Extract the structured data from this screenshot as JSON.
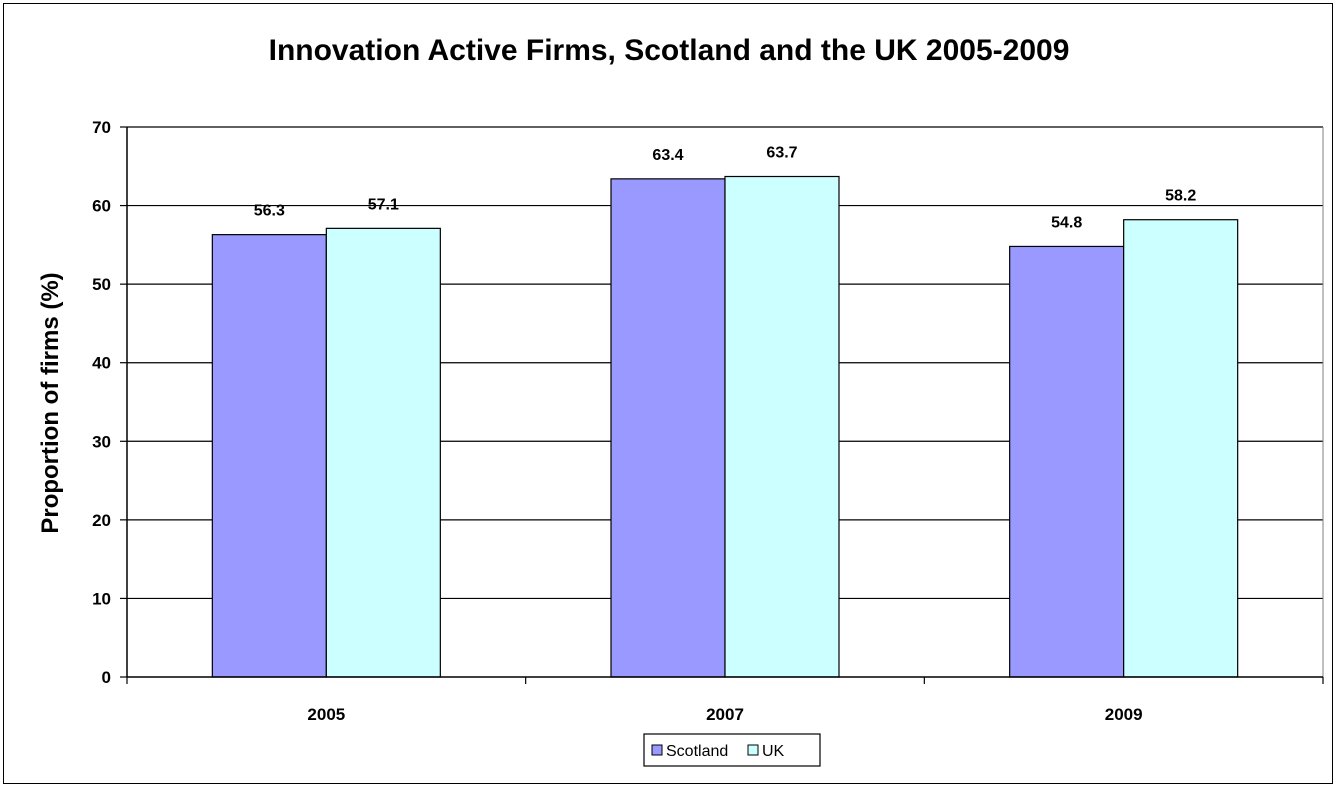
{
  "chart_data": {
    "type": "bar",
    "title": "Innovation Active Firms, Scotland and the UK 2005-2009",
    "xlabel": "",
    "ylabel": "Proportion of firms (%)",
    "categories": [
      "2005",
      "2007",
      "2009"
    ],
    "series": [
      {
        "name": "Scotland",
        "values": [
          56.3,
          63.4,
          54.8
        ],
        "color": "#9999ff"
      },
      {
        "name": "UK",
        "values": [
          57.1,
          63.7,
          58.2
        ],
        "color": "#ccffff"
      }
    ],
    "ylim": [
      0,
      70
    ],
    "yticks": [
      "0",
      "10",
      "20",
      "30",
      "40",
      "50",
      "60",
      "70"
    ],
    "data_labels": [
      [
        "56.3",
        "63.4",
        "54.8"
      ],
      [
        "57.1",
        "63.7",
        "58.2"
      ]
    ],
    "grid": true,
    "legend": "bottom"
  }
}
